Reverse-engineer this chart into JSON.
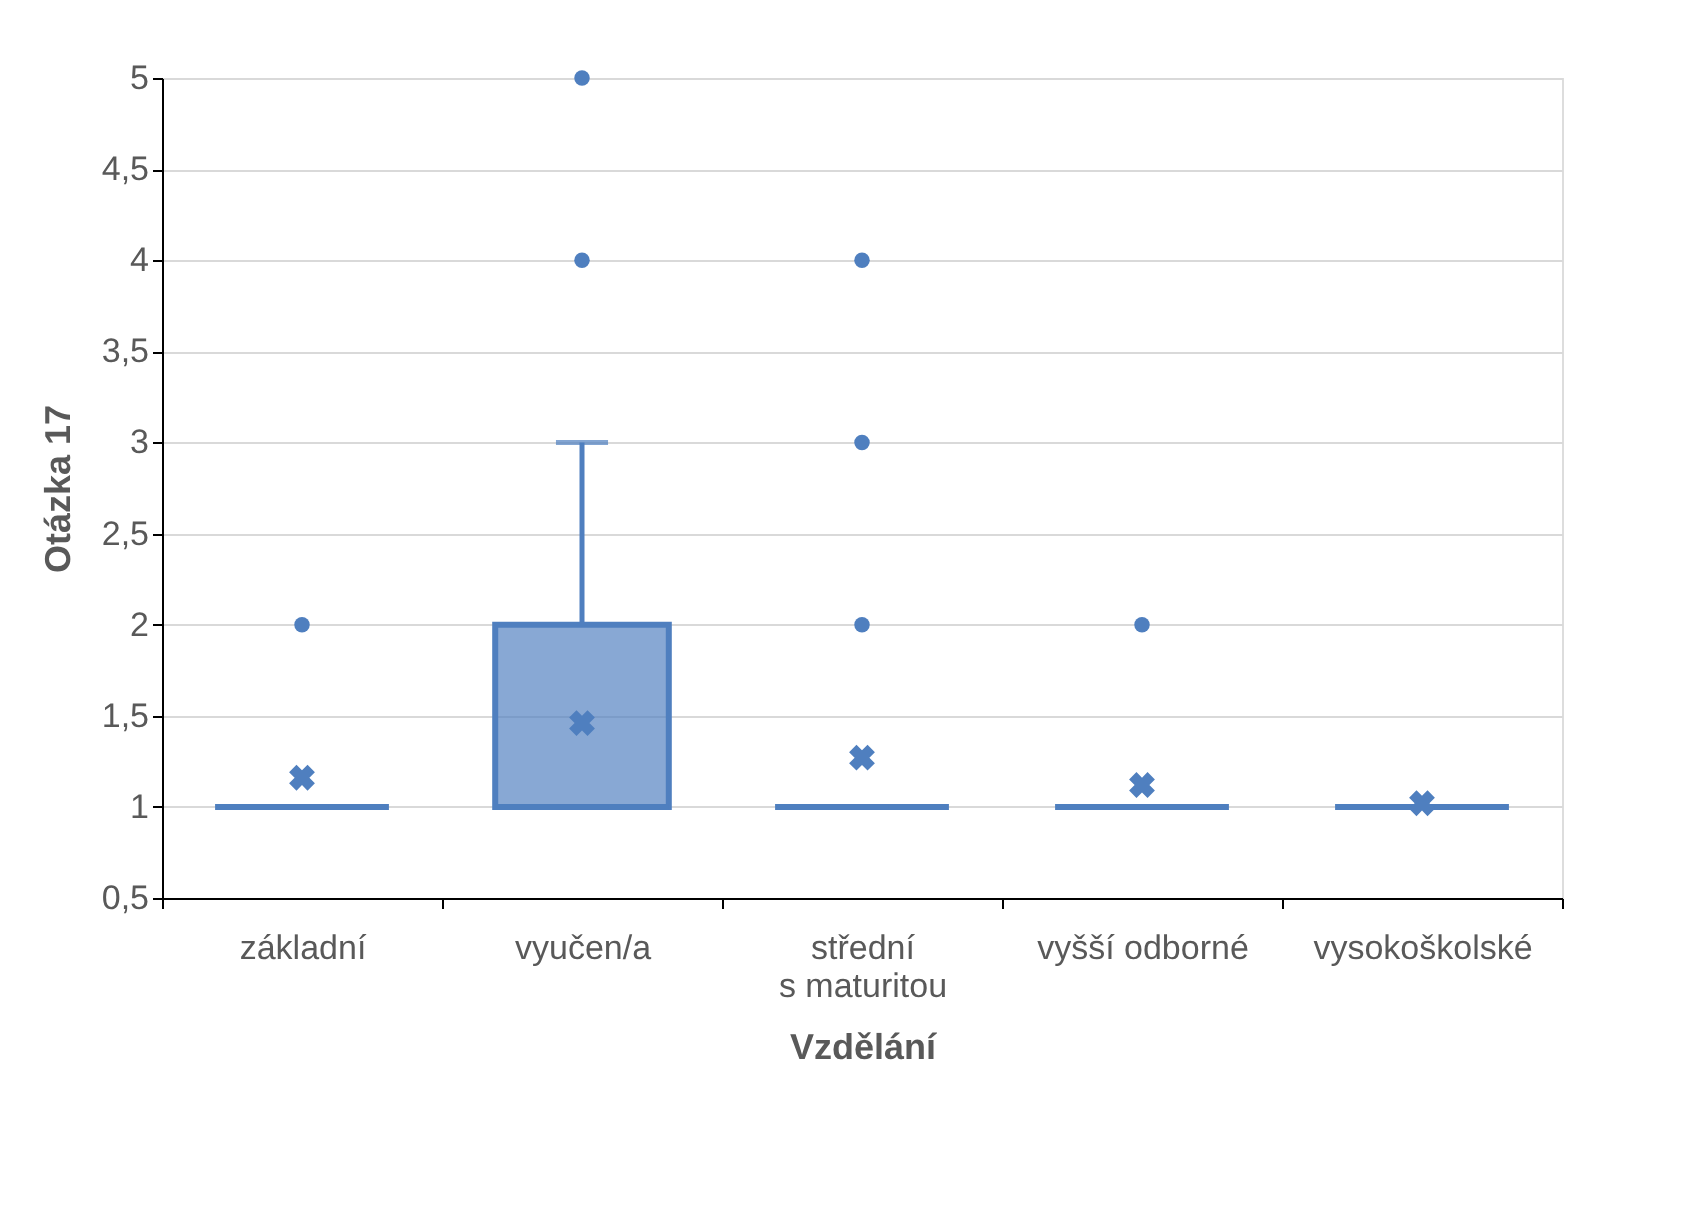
{
  "chart_data": {
    "type": "box",
    "xlabel": "Vzdělání",
    "ylabel": "Otázka 17",
    "categories": [
      "základní",
      "vyučen/a",
      "střední\ns maturitou",
      "vyšší odborné",
      "vysokoškolské"
    ],
    "color": "#4f7fbf",
    "boxes": [
      {
        "low": 1,
        "q1": 1,
        "median": 1,
        "q3": 1,
        "high": 1,
        "mean": 1.16,
        "outliers": [
          2
        ]
      },
      {
        "low": 1,
        "q1": 1,
        "median": 1,
        "q3": 2,
        "high": 3,
        "mean": 1.46,
        "outliers": [
          4,
          5
        ]
      },
      {
        "low": 1,
        "q1": 1,
        "median": 1,
        "q3": 1,
        "high": 1,
        "mean": 1.27,
        "outliers": [
          2,
          3,
          4
        ]
      },
      {
        "low": 1,
        "q1": 1,
        "median": 1,
        "q3": 1,
        "high": 1,
        "mean": 1.12,
        "outliers": [
          2
        ]
      },
      {
        "low": 1,
        "q1": 1,
        "median": 1,
        "q3": 1,
        "high": 1,
        "mean": 1.02
      }
    ],
    "ylim": [
      0.5,
      5
    ],
    "yticks": [
      {
        "value": 0.5,
        "label": "0,5"
      },
      1,
      {
        "value": 1.5,
        "label": "1,5"
      },
      2,
      {
        "value": 2.5,
        "label": "2,5"
      },
      3,
      {
        "value": 3.5,
        "label": "3,5"
      },
      4,
      {
        "value": 4.5,
        "label": "4,5"
      },
      5
    ],
    "grid": "y",
    "marker": "circle"
  }
}
